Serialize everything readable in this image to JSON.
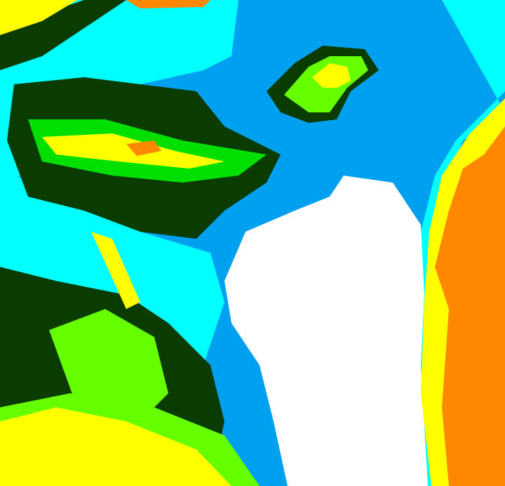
{
  "palette": {
    "water_blue": "#00a0f0",
    "cyan": "#00ffff",
    "dark_green": "#0a3c00",
    "green": "#00e000",
    "light_green": "#66ff00",
    "yellow": "#ffff00",
    "orange": "#ff8800",
    "white": "#ffffff"
  }
}
